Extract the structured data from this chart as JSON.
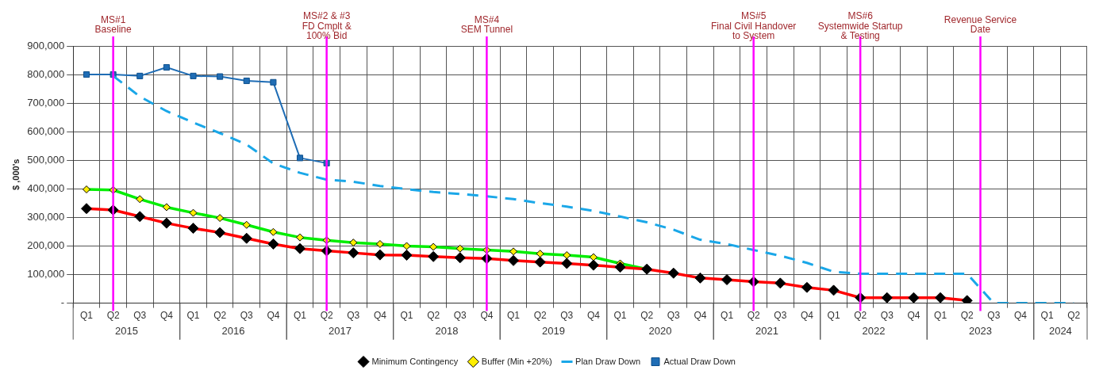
{
  "chart_data": {
    "type": "line",
    "ylabel": "$ ,000's",
    "categories": [
      "Q1",
      "Q2",
      "Q3",
      "Q4",
      "Q1",
      "Q2",
      "Q3",
      "Q4",
      "Q1",
      "Q2",
      "Q3",
      "Q4",
      "Q1",
      "Q2",
      "Q3",
      "Q4",
      "Q1",
      "Q2",
      "Q3",
      "Q4",
      "Q1",
      "Q2",
      "Q3",
      "Q4",
      "Q1",
      "Q2",
      "Q3",
      "Q4",
      "Q1",
      "Q2",
      "Q3",
      "Q4",
      "Q1",
      "Q2",
      "Q3",
      "Q4",
      "Q1",
      "Q2"
    ],
    "annotations": [
      "2015",
      "2016",
      "2017",
      "2018",
      "2019",
      "2020",
      "2021",
      "2022",
      "2023",
      "2024",
      "MS#1\nBaseline",
      "MS#2 & #3\nFD Cmplt &\n100% Bid",
      "MS#4\nSEM Tunnel",
      "MS#5\nFinal Civil Handover\nto System",
      "MS#6\nSystemwide Startup\n& Testing",
      "Revenue Service\nDate"
    ],
    "series": [
      {
        "name": "Minimum Contingency",
        "color": "#ff0000",
        "marker": "diamond",
        "line_style": "solid",
        "values": [
          331000,
          326000,
          303000,
          280000,
          262000,
          247000,
          227000,
          207000,
          191000,
          183000,
          176000,
          169000,
          168000,
          163000,
          159000,
          156000,
          149000,
          144000,
          139000,
          133000,
          126000,
          119000,
          105000,
          88000,
          82000,
          75000,
          70000,
          55000,
          45000,
          19000,
          19000,
          19000,
          19000,
          9000,
          null,
          null,
          null,
          null
        ]
      },
      {
        "name": "Buffer (Min +20%)",
        "color": "#00ee00",
        "marker": "diamond",
        "line_style": "solid",
        "values": [
          398000,
          396000,
          364000,
          336000,
          316000,
          298000,
          274000,
          249000,
          230000,
          220000,
          212000,
          207000,
          200000,
          197000,
          191000,
          186000,
          181000,
          173000,
          168000,
          161000,
          139000,
          119000,
          null,
          null,
          null,
          null,
          null,
          null,
          null,
          null,
          null,
          null,
          null,
          null,
          null,
          null,
          null,
          null
        ]
      },
      {
        "name": "Plan Draw Down",
        "color": "#1aa7e8",
        "marker": "none",
        "line_style": "dashed",
        "values": [
          null,
          795000,
          723000,
          672000,
          632000,
          595000,
          555000,
          489000,
          456000,
          432000,
          425000,
          410000,
          399000,
          389000,
          382000,
          374000,
          364000,
          350000,
          338000,
          323000,
          303000,
          283000,
          257000,
          222000,
          207000,
          186000,
          166000,
          141000,
          110000,
          103000,
          103000,
          103000,
          103000,
          103000,
          0,
          0,
          0,
          0
        ]
      },
      {
        "name": "Actual Draw Down",
        "color": "#1f6db5",
        "marker": "square",
        "line_style": "solid",
        "values": [
          800000,
          800000,
          795000,
          825000,
          795000,
          793000,
          778000,
          773000,
          508000,
          490000,
          null,
          null,
          null,
          null,
          null,
          null,
          null,
          null,
          null,
          null,
          null,
          null,
          null,
          null,
          null,
          null,
          null,
          null,
          null,
          null,
          null,
          null,
          null,
          null,
          null,
          null,
          null,
          null
        ]
      }
    ],
    "ylim": [
      0,
      900000
    ],
    "yticks": [
      {
        "value": 0,
        "label": "-"
      },
      {
        "value": 100000,
        "label": "100,000"
      },
      {
        "value": 200000,
        "label": "200,000"
      },
      {
        "value": 300000,
        "label": "300,000"
      },
      {
        "value": 400000,
        "label": "400,000"
      },
      {
        "value": 500000,
        "label": "500,000"
      },
      {
        "value": 600000,
        "label": "600,000"
      },
      {
        "value": 700000,
        "label": "700,000"
      },
      {
        "value": 800000,
        "label": "800,000"
      },
      {
        "value": 900000,
        "label": "900,000"
      }
    ],
    "grid": true,
    "legend": "bottom"
  }
}
